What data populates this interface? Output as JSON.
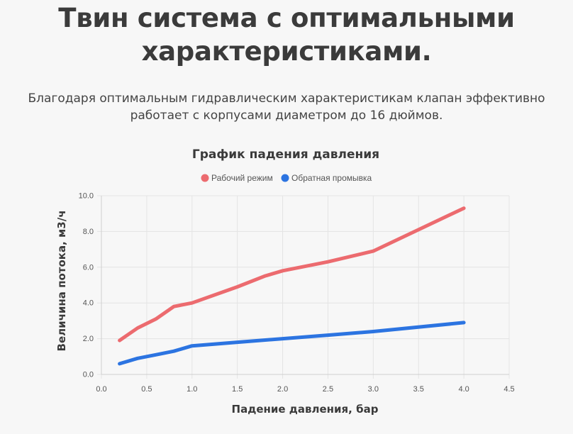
{
  "header": {
    "title_line1": "Твин система с оптимальными",
    "title_line2": "характеристиками.",
    "description_line1": "Благодаря оптимальным гидравлическим характеристикам клапан эффективно",
    "description_line2": "работает с корпусами диаметром до 16 дюймов."
  },
  "chart_data": {
    "type": "line",
    "title": "График падения давления",
    "xlabel": "Падение давления, бар",
    "ylabel": "Величина потока, м3/ч",
    "xlim": [
      0,
      4.5
    ],
    "ylim": [
      0,
      10
    ],
    "x_ticks": [
      "0.0",
      "0.5",
      "1.0",
      "1.5",
      "2.0",
      "2.5",
      "3.0",
      "3.5",
      "4.0",
      "4.5"
    ],
    "y_ticks": [
      "0.0",
      "2.0",
      "4.0",
      "6.0",
      "8.0",
      "10.0"
    ],
    "grid": true,
    "legend_position": "top",
    "series": [
      {
        "name": "Рабочий режим",
        "color": "#ec6b6f",
        "x": [
          0.2,
          0.4,
          0.6,
          0.8,
          1.0,
          1.5,
          1.8,
          2.0,
          2.5,
          3.0,
          4.0
        ],
        "values": [
          1.9,
          2.6,
          3.1,
          3.8,
          4.0,
          4.9,
          5.5,
          5.8,
          6.3,
          6.9,
          9.3
        ]
      },
      {
        "name": "Обратная промывка",
        "color": "#2c74e1",
        "x": [
          0.2,
          0.4,
          0.6,
          0.8,
          1.0,
          1.5,
          2.0,
          2.5,
          3.0,
          4.0
        ],
        "values": [
          0.6,
          0.9,
          1.1,
          1.3,
          1.6,
          1.8,
          2.0,
          2.2,
          2.4,
          2.9
        ]
      }
    ]
  }
}
